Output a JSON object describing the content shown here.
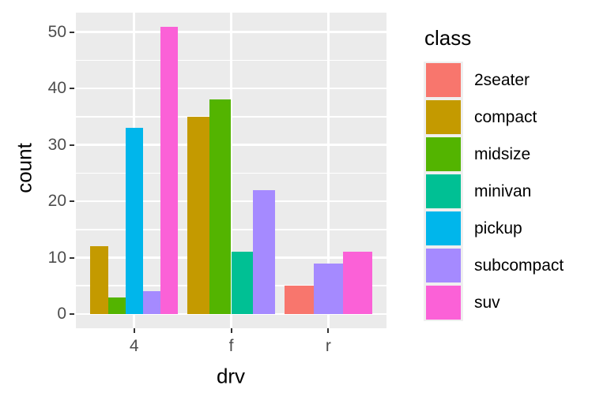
{
  "chart_data": {
    "type": "bar",
    "mode": "dodge",
    "title": "",
    "xlabel": "drv",
    "ylabel": "count",
    "categories": [
      "4",
      "f",
      "r"
    ],
    "series": [
      {
        "name": "2seater",
        "color": "#F8766D",
        "values": [
          null,
          null,
          5
        ]
      },
      {
        "name": "compact",
        "color": "#C49A00",
        "values": [
          12,
          35,
          null
        ]
      },
      {
        "name": "midsize",
        "color": "#53B400",
        "values": [
          3,
          38,
          null
        ]
      },
      {
        "name": "minivan",
        "color": "#00C094",
        "values": [
          null,
          11,
          null
        ]
      },
      {
        "name": "pickup",
        "color": "#00B6EB",
        "values": [
          33,
          null,
          null
        ]
      },
      {
        "name": "subcompact",
        "color": "#A58AFF",
        "values": [
          4,
          22,
          9
        ]
      },
      {
        "name": "suv",
        "color": "#FB61D7",
        "values": [
          51,
          null,
          11
        ]
      }
    ],
    "yticks": [
      0,
      10,
      20,
      30,
      40,
      50
    ],
    "ylim": [
      -2.55,
      53.55
    ],
    "grid": true,
    "legend": {
      "title": "class",
      "position": "right"
    },
    "colors": {
      "panel_background": "#EBEBEB",
      "gridline": "#FFFFFF",
      "axis_text": "#4D4D4D",
      "axis_title": "#000000",
      "tick_mark": "#333333"
    }
  }
}
